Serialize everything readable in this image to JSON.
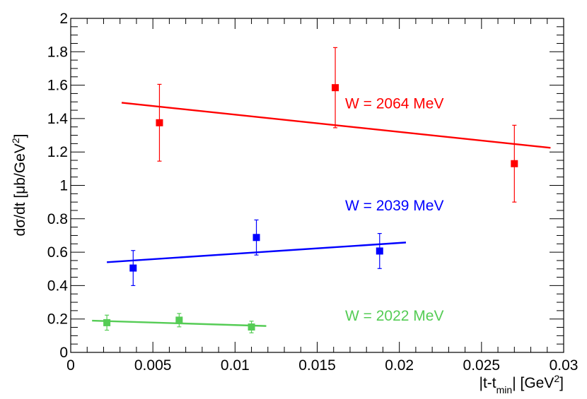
{
  "chart_data": {
    "type": "scatter",
    "title": "",
    "xlabel": {
      "main": "|t-t",
      "sub": "min",
      "after": "| [GeV",
      "sup": "2",
      "end": "]"
    },
    "ylabel": {
      "main": "dσ/dt [μb/GeV",
      "sup": "2",
      "end": "]"
    },
    "xlim": [
      0,
      0.03
    ],
    "ylim": [
      0,
      2
    ],
    "x_ticks": [
      {
        "value": 0,
        "label": "0"
      },
      {
        "value": 0.005,
        "label": "0.005"
      },
      {
        "value": 0.01,
        "label": "0.01"
      },
      {
        "value": 0.015,
        "label": "0.015"
      },
      {
        "value": 0.02,
        "label": "0.02"
      },
      {
        "value": 0.025,
        "label": "0.025"
      },
      {
        "value": 0.03,
        "label": "0.03"
      }
    ],
    "y_ticks": [
      {
        "value": 0,
        "label": "0"
      },
      {
        "value": 0.2,
        "label": "0.2"
      },
      {
        "value": 0.4,
        "label": "0.4"
      },
      {
        "value": 0.6,
        "label": "0.6"
      },
      {
        "value": 0.8,
        "label": "0.8"
      },
      {
        "value": 1.0,
        "label": "1"
      },
      {
        "value": 1.2,
        "label": "1.2"
      },
      {
        "value": 1.4,
        "label": "1.4"
      },
      {
        "value": 1.6,
        "label": "1.6"
      },
      {
        "value": 1.8,
        "label": "1.8"
      },
      {
        "value": 2.0,
        "label": "2"
      }
    ],
    "grid": false,
    "series": [
      {
        "name": "W = 2064 MeV",
        "color": "#ff0000",
        "label_pos": {
          "x": 0.0167,
          "y": 1.46
        },
        "points": [
          {
            "x": 0.0054,
            "y": 1.375,
            "err": 0.23
          },
          {
            "x": 0.0161,
            "y": 1.585,
            "err": 0.24
          },
          {
            "x": 0.027,
            "y": 1.13,
            "err": 0.23
          }
        ],
        "fit": {
          "x": [
            0.0031,
            0.0292
          ],
          "y": [
            1.495,
            1.225
          ]
        }
      },
      {
        "name": "W = 2039 MeV",
        "color": "#0000ff",
        "label_pos": {
          "x": 0.0167,
          "y": 0.85
        },
        "points": [
          {
            "x": 0.0038,
            "y": 0.505,
            "err": 0.105
          },
          {
            "x": 0.0113,
            "y": 0.688,
            "err": 0.105
          },
          {
            "x": 0.0188,
            "y": 0.607,
            "err": 0.105
          }
        ],
        "fit": {
          "x": [
            0.0022,
            0.0204
          ],
          "y": [
            0.54,
            0.658
          ]
        }
      },
      {
        "name": "W = 2022 MeV",
        "color": "#55cc55",
        "label_pos": {
          "x": 0.0167,
          "y": 0.19
        },
        "points": [
          {
            "x": 0.0022,
            "y": 0.178,
            "err": 0.045
          },
          {
            "x": 0.0066,
            "y": 0.193,
            "err": 0.04
          },
          {
            "x": 0.011,
            "y": 0.152,
            "err": 0.035
          }
        ],
        "fit": {
          "x": [
            0.0013,
            0.0119
          ],
          "y": [
            0.19,
            0.158
          ]
        }
      }
    ]
  }
}
